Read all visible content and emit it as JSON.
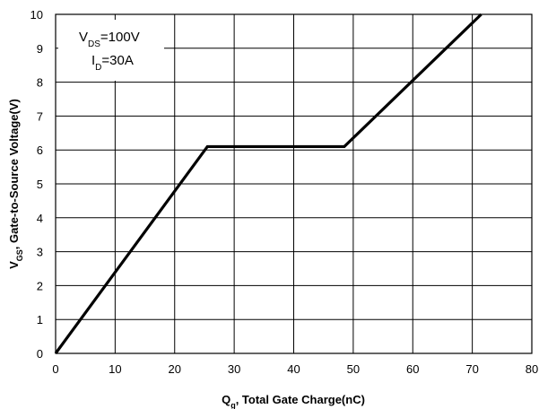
{
  "chart_data": {
    "type": "line",
    "title": "",
    "xlabel": {
      "main": "Q",
      "sub": "g",
      "rest": ", Total Gate Charge(nC)"
    },
    "ylabel": {
      "main": "V",
      "sub": "GS",
      "rest": ", Gate-to-Source Voltage(V)"
    },
    "xlim": [
      0,
      80
    ],
    "ylim": [
      0,
      10
    ],
    "xticks": [
      0,
      10,
      20,
      30,
      40,
      50,
      60,
      70,
      80
    ],
    "yticks": [
      0,
      1,
      2,
      3,
      4,
      5,
      6,
      7,
      8,
      9,
      10
    ],
    "grid": true,
    "legend": "none",
    "annotations": [
      {
        "main": "V",
        "sub": "DS",
        "rest": "=100V"
      },
      {
        "main": "I",
        "sub": "D",
        "rest": "=30A"
      }
    ],
    "series": [
      {
        "x": [
          0,
          25.5,
          48.5,
          71.5
        ],
        "y": [
          0,
          6.1,
          6.1,
          10
        ]
      }
    ]
  }
}
